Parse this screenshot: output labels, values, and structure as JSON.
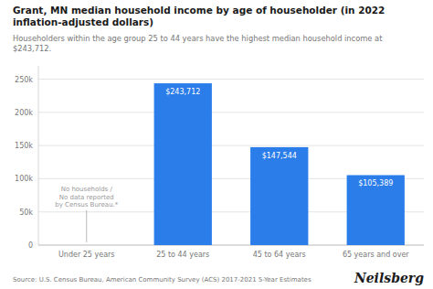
{
  "chart_data": {
    "type": "bar",
    "title": "Grant, MN median household income by age of householder (in 2022\ninflation-adjusted dollars)",
    "subtitle": "Householders within the age group 25 to 44 years have the highest median household income at\n$243,712.",
    "categories": [
      "Under 25 years",
      "25 to 44 years",
      "45 to 64 years",
      "65 years and over"
    ],
    "values": [
      0,
      243712,
      147544,
      105389
    ],
    "value_labels": [
      null,
      "$243,712",
      "$147,544",
      "$105,389"
    ],
    "data_labels": true,
    "color": "#2b7de9",
    "ylim": [
      0,
      270000
    ],
    "yticks": [
      0,
      {
        "value": 50000,
        "label": "50k"
      },
      {
        "value": 100000,
        "label": "100k"
      },
      {
        "value": 150000,
        "label": "150k"
      },
      {
        "value": 200000,
        "label": "200k"
      },
      {
        "value": 250000,
        "label": "250k"
      }
    ],
    "grid": true,
    "annotations": [
      {
        "text": "No households /\nNo data reported\nby Census Bureau.*",
        "category": "Under 25 years"
      }
    ],
    "source": "Source: U.S. Census Bureau, American Community Survey (ACS) 2017-2021 5-Year Estimates",
    "brand": "Neilsberg"
  }
}
